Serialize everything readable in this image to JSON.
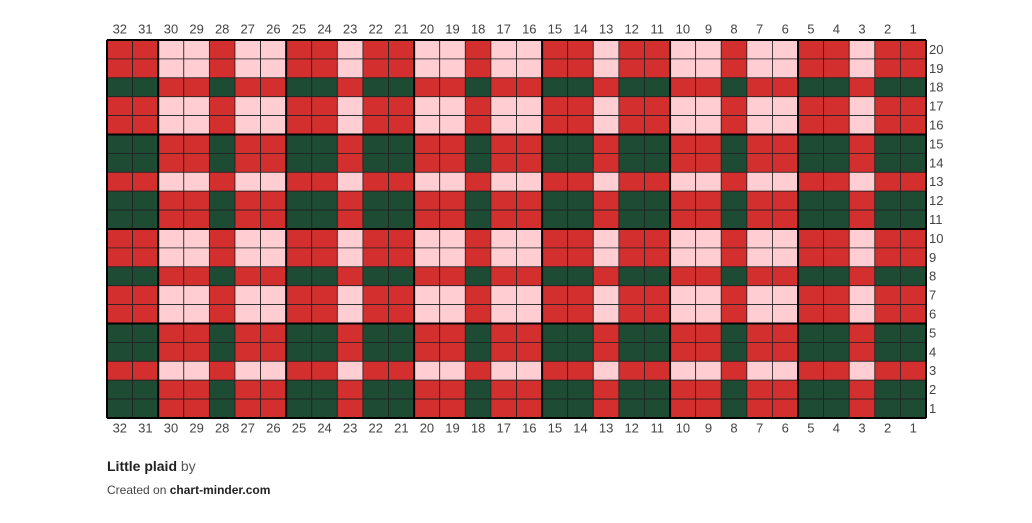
{
  "grid": {
    "column_labels": [
      32,
      31,
      30,
      29,
      28,
      27,
      26,
      25,
      24,
      23,
      22,
      21,
      20,
      19,
      18,
      17,
      16,
      15,
      14,
      13,
      12,
      11,
      10,
      9,
      8,
      7,
      6,
      5,
      4,
      3,
      2,
      1
    ],
    "row_labels": [
      20,
      19,
      18,
      17,
      16,
      15,
      14,
      13,
      12,
      11,
      10,
      9,
      8,
      7,
      6,
      5,
      4,
      3,
      2,
      1
    ],
    "major_every": 5,
    "rows": [
      [
        "#d32f2f",
        "#d32f2f",
        "#ffcdd2",
        "#ffcdd2",
        "#d32f2f",
        "#ffcdd2",
        "#ffcdd2",
        "#d32f2f",
        "#d32f2f",
        "#ffcdd2",
        "#d32f2f",
        "#d32f2f",
        "#ffcdd2",
        "#ffcdd2",
        "#d32f2f",
        "#ffcdd2",
        "#ffcdd2",
        "#d32f2f",
        "#d32f2f",
        "#ffcdd2",
        "#d32f2f",
        "#d32f2f",
        "#ffcdd2",
        "#ffcdd2",
        "#d32f2f",
        "#ffcdd2",
        "#ffcdd2",
        "#d32f2f",
        "#d32f2f",
        "#ffcdd2",
        "#d32f2f",
        "#d32f2f"
      ],
      [
        "#d32f2f",
        "#d32f2f",
        "#ffcdd2",
        "#ffcdd2",
        "#d32f2f",
        "#ffcdd2",
        "#ffcdd2",
        "#d32f2f",
        "#d32f2f",
        "#ffcdd2",
        "#d32f2f",
        "#d32f2f",
        "#ffcdd2",
        "#ffcdd2",
        "#d32f2f",
        "#ffcdd2",
        "#ffcdd2",
        "#d32f2f",
        "#d32f2f",
        "#ffcdd2",
        "#d32f2f",
        "#d32f2f",
        "#ffcdd2",
        "#ffcdd2",
        "#d32f2f",
        "#ffcdd2",
        "#ffcdd2",
        "#d32f2f",
        "#d32f2f",
        "#ffcdd2",
        "#d32f2f",
        "#d32f2f"
      ],
      [
        "#1d4b34",
        "#1d4b34",
        "#d32f2f",
        "#d32f2f",
        "#1d4b34",
        "#d32f2f",
        "#d32f2f",
        "#1d4b34",
        "#1d4b34",
        "#d32f2f",
        "#1d4b34",
        "#1d4b34",
        "#d32f2f",
        "#d32f2f",
        "#1d4b34",
        "#d32f2f",
        "#d32f2f",
        "#1d4b34",
        "#1d4b34",
        "#d32f2f",
        "#1d4b34",
        "#1d4b34",
        "#d32f2f",
        "#d32f2f",
        "#1d4b34",
        "#d32f2f",
        "#d32f2f",
        "#1d4b34",
        "#1d4b34",
        "#d32f2f",
        "#1d4b34",
        "#1d4b34"
      ],
      [
        "#d32f2f",
        "#d32f2f",
        "#ffcdd2",
        "#ffcdd2",
        "#d32f2f",
        "#ffcdd2",
        "#ffcdd2",
        "#d32f2f",
        "#d32f2f",
        "#ffcdd2",
        "#d32f2f",
        "#d32f2f",
        "#ffcdd2",
        "#ffcdd2",
        "#d32f2f",
        "#ffcdd2",
        "#ffcdd2",
        "#d32f2f",
        "#d32f2f",
        "#ffcdd2",
        "#d32f2f",
        "#d32f2f",
        "#ffcdd2",
        "#ffcdd2",
        "#d32f2f",
        "#ffcdd2",
        "#ffcdd2",
        "#d32f2f",
        "#d32f2f",
        "#ffcdd2",
        "#d32f2f",
        "#d32f2f"
      ],
      [
        "#d32f2f",
        "#d32f2f",
        "#ffcdd2",
        "#ffcdd2",
        "#d32f2f",
        "#ffcdd2",
        "#ffcdd2",
        "#d32f2f",
        "#d32f2f",
        "#ffcdd2",
        "#d32f2f",
        "#d32f2f",
        "#ffcdd2",
        "#ffcdd2",
        "#d32f2f",
        "#ffcdd2",
        "#ffcdd2",
        "#d32f2f",
        "#d32f2f",
        "#ffcdd2",
        "#d32f2f",
        "#d32f2f",
        "#ffcdd2",
        "#ffcdd2",
        "#d32f2f",
        "#ffcdd2",
        "#ffcdd2",
        "#d32f2f",
        "#d32f2f",
        "#ffcdd2",
        "#d32f2f",
        "#d32f2f"
      ],
      [
        "#1d4b34",
        "#1d4b34",
        "#d32f2f",
        "#d32f2f",
        "#1d4b34",
        "#d32f2f",
        "#d32f2f",
        "#1d4b34",
        "#1d4b34",
        "#d32f2f",
        "#1d4b34",
        "#1d4b34",
        "#d32f2f",
        "#d32f2f",
        "#1d4b34",
        "#d32f2f",
        "#d32f2f",
        "#1d4b34",
        "#1d4b34",
        "#d32f2f",
        "#1d4b34",
        "#1d4b34",
        "#d32f2f",
        "#d32f2f",
        "#1d4b34",
        "#d32f2f",
        "#d32f2f",
        "#1d4b34",
        "#1d4b34",
        "#d32f2f",
        "#1d4b34",
        "#1d4b34"
      ],
      [
        "#1d4b34",
        "#1d4b34",
        "#d32f2f",
        "#d32f2f",
        "#1d4b34",
        "#d32f2f",
        "#d32f2f",
        "#1d4b34",
        "#1d4b34",
        "#d32f2f",
        "#1d4b34",
        "#1d4b34",
        "#d32f2f",
        "#d32f2f",
        "#1d4b34",
        "#d32f2f",
        "#d32f2f",
        "#1d4b34",
        "#1d4b34",
        "#d32f2f",
        "#1d4b34",
        "#1d4b34",
        "#d32f2f",
        "#d32f2f",
        "#1d4b34",
        "#d32f2f",
        "#d32f2f",
        "#1d4b34",
        "#1d4b34",
        "#d32f2f",
        "#1d4b34",
        "#1d4b34"
      ],
      [
        "#d32f2f",
        "#d32f2f",
        "#ffcdd2",
        "#ffcdd2",
        "#d32f2f",
        "#ffcdd2",
        "#ffcdd2",
        "#d32f2f",
        "#d32f2f",
        "#ffcdd2",
        "#d32f2f",
        "#d32f2f",
        "#ffcdd2",
        "#ffcdd2",
        "#d32f2f",
        "#ffcdd2",
        "#ffcdd2",
        "#d32f2f",
        "#d32f2f",
        "#ffcdd2",
        "#d32f2f",
        "#d32f2f",
        "#ffcdd2",
        "#ffcdd2",
        "#d32f2f",
        "#ffcdd2",
        "#ffcdd2",
        "#d32f2f",
        "#d32f2f",
        "#ffcdd2",
        "#d32f2f",
        "#d32f2f"
      ],
      [
        "#1d4b34",
        "#1d4b34",
        "#d32f2f",
        "#d32f2f",
        "#1d4b34",
        "#d32f2f",
        "#d32f2f",
        "#1d4b34",
        "#1d4b34",
        "#d32f2f",
        "#1d4b34",
        "#1d4b34",
        "#d32f2f",
        "#d32f2f",
        "#1d4b34",
        "#d32f2f",
        "#d32f2f",
        "#1d4b34",
        "#1d4b34",
        "#d32f2f",
        "#1d4b34",
        "#1d4b34",
        "#d32f2f",
        "#d32f2f",
        "#1d4b34",
        "#d32f2f",
        "#d32f2f",
        "#1d4b34",
        "#1d4b34",
        "#d32f2f",
        "#1d4b34",
        "#1d4b34"
      ],
      [
        "#1d4b34",
        "#1d4b34",
        "#d32f2f",
        "#d32f2f",
        "#1d4b34",
        "#d32f2f",
        "#d32f2f",
        "#1d4b34",
        "#1d4b34",
        "#d32f2f",
        "#1d4b34",
        "#1d4b34",
        "#d32f2f",
        "#d32f2f",
        "#1d4b34",
        "#d32f2f",
        "#d32f2f",
        "#1d4b34",
        "#1d4b34",
        "#d32f2f",
        "#1d4b34",
        "#1d4b34",
        "#d32f2f",
        "#d32f2f",
        "#1d4b34",
        "#d32f2f",
        "#d32f2f",
        "#1d4b34",
        "#1d4b34",
        "#d32f2f",
        "#1d4b34",
        "#1d4b34"
      ],
      [
        "#d32f2f",
        "#d32f2f",
        "#ffcdd2",
        "#ffcdd2",
        "#d32f2f",
        "#ffcdd2",
        "#ffcdd2",
        "#d32f2f",
        "#d32f2f",
        "#ffcdd2",
        "#d32f2f",
        "#d32f2f",
        "#ffcdd2",
        "#ffcdd2",
        "#d32f2f",
        "#ffcdd2",
        "#ffcdd2",
        "#d32f2f",
        "#d32f2f",
        "#ffcdd2",
        "#d32f2f",
        "#d32f2f",
        "#ffcdd2",
        "#ffcdd2",
        "#d32f2f",
        "#ffcdd2",
        "#ffcdd2",
        "#d32f2f",
        "#d32f2f",
        "#ffcdd2",
        "#d32f2f",
        "#d32f2f"
      ],
      [
        "#d32f2f",
        "#d32f2f",
        "#ffcdd2",
        "#ffcdd2",
        "#d32f2f",
        "#ffcdd2",
        "#ffcdd2",
        "#d32f2f",
        "#d32f2f",
        "#ffcdd2",
        "#d32f2f",
        "#d32f2f",
        "#ffcdd2",
        "#ffcdd2",
        "#d32f2f",
        "#ffcdd2",
        "#ffcdd2",
        "#d32f2f",
        "#d32f2f",
        "#ffcdd2",
        "#d32f2f",
        "#d32f2f",
        "#ffcdd2",
        "#ffcdd2",
        "#d32f2f",
        "#ffcdd2",
        "#ffcdd2",
        "#d32f2f",
        "#d32f2f",
        "#ffcdd2",
        "#d32f2f",
        "#d32f2f"
      ],
      [
        "#1d4b34",
        "#1d4b34",
        "#d32f2f",
        "#d32f2f",
        "#1d4b34",
        "#d32f2f",
        "#d32f2f",
        "#1d4b34",
        "#1d4b34",
        "#d32f2f",
        "#1d4b34",
        "#1d4b34",
        "#d32f2f",
        "#d32f2f",
        "#1d4b34",
        "#d32f2f",
        "#d32f2f",
        "#1d4b34",
        "#1d4b34",
        "#d32f2f",
        "#1d4b34",
        "#1d4b34",
        "#d32f2f",
        "#d32f2f",
        "#1d4b34",
        "#d32f2f",
        "#d32f2f",
        "#1d4b34",
        "#1d4b34",
        "#d32f2f",
        "#1d4b34",
        "#1d4b34"
      ],
      [
        "#d32f2f",
        "#d32f2f",
        "#ffcdd2",
        "#ffcdd2",
        "#d32f2f",
        "#ffcdd2",
        "#ffcdd2",
        "#d32f2f",
        "#d32f2f",
        "#ffcdd2",
        "#d32f2f",
        "#d32f2f",
        "#ffcdd2",
        "#ffcdd2",
        "#d32f2f",
        "#ffcdd2",
        "#ffcdd2",
        "#d32f2f",
        "#d32f2f",
        "#ffcdd2",
        "#d32f2f",
        "#d32f2f",
        "#ffcdd2",
        "#ffcdd2",
        "#d32f2f",
        "#ffcdd2",
        "#ffcdd2",
        "#d32f2f",
        "#d32f2f",
        "#ffcdd2",
        "#d32f2f",
        "#d32f2f"
      ],
      [
        "#d32f2f",
        "#d32f2f",
        "#ffcdd2",
        "#ffcdd2",
        "#d32f2f",
        "#ffcdd2",
        "#ffcdd2",
        "#d32f2f",
        "#d32f2f",
        "#ffcdd2",
        "#d32f2f",
        "#d32f2f",
        "#ffcdd2",
        "#ffcdd2",
        "#d32f2f",
        "#ffcdd2",
        "#ffcdd2",
        "#d32f2f",
        "#d32f2f",
        "#ffcdd2",
        "#d32f2f",
        "#d32f2f",
        "#ffcdd2",
        "#ffcdd2",
        "#d32f2f",
        "#ffcdd2",
        "#ffcdd2",
        "#d32f2f",
        "#d32f2f",
        "#ffcdd2",
        "#d32f2f",
        "#d32f2f"
      ],
      [
        "#1d4b34",
        "#1d4b34",
        "#d32f2f",
        "#d32f2f",
        "#1d4b34",
        "#d32f2f",
        "#d32f2f",
        "#1d4b34",
        "#1d4b34",
        "#d32f2f",
        "#1d4b34",
        "#1d4b34",
        "#d32f2f",
        "#d32f2f",
        "#1d4b34",
        "#d32f2f",
        "#d32f2f",
        "#1d4b34",
        "#1d4b34",
        "#d32f2f",
        "#1d4b34",
        "#1d4b34",
        "#d32f2f",
        "#d32f2f",
        "#1d4b34",
        "#d32f2f",
        "#d32f2f",
        "#1d4b34",
        "#1d4b34",
        "#d32f2f",
        "#1d4b34",
        "#1d4b34"
      ],
      [
        "#1d4b34",
        "#1d4b34",
        "#d32f2f",
        "#d32f2f",
        "#1d4b34",
        "#d32f2f",
        "#d32f2f",
        "#1d4b34",
        "#1d4b34",
        "#d32f2f",
        "#1d4b34",
        "#1d4b34",
        "#d32f2f",
        "#d32f2f",
        "#1d4b34",
        "#d32f2f",
        "#d32f2f",
        "#1d4b34",
        "#1d4b34",
        "#d32f2f",
        "#1d4b34",
        "#1d4b34",
        "#d32f2f",
        "#d32f2f",
        "#1d4b34",
        "#d32f2f",
        "#d32f2f",
        "#1d4b34",
        "#1d4b34",
        "#d32f2f",
        "#1d4b34",
        "#1d4b34"
      ],
      [
        "#d32f2f",
        "#d32f2f",
        "#ffcdd2",
        "#ffcdd2",
        "#d32f2f",
        "#ffcdd2",
        "#ffcdd2",
        "#d32f2f",
        "#d32f2f",
        "#ffcdd2",
        "#d32f2f",
        "#d32f2f",
        "#ffcdd2",
        "#ffcdd2",
        "#d32f2f",
        "#ffcdd2",
        "#ffcdd2",
        "#d32f2f",
        "#d32f2f",
        "#ffcdd2",
        "#d32f2f",
        "#d32f2f",
        "#ffcdd2",
        "#ffcdd2",
        "#d32f2f",
        "#ffcdd2",
        "#ffcdd2",
        "#d32f2f",
        "#d32f2f",
        "#ffcdd2",
        "#d32f2f",
        "#d32f2f"
      ],
      [
        "#1d4b34",
        "#1d4b34",
        "#d32f2f",
        "#d32f2f",
        "#1d4b34",
        "#d32f2f",
        "#d32f2f",
        "#1d4b34",
        "#1d4b34",
        "#d32f2f",
        "#1d4b34",
        "#1d4b34",
        "#d32f2f",
        "#d32f2f",
        "#1d4b34",
        "#d32f2f",
        "#d32f2f",
        "#1d4b34",
        "#1d4b34",
        "#d32f2f",
        "#1d4b34",
        "#1d4b34",
        "#d32f2f",
        "#d32f2f",
        "#1d4b34",
        "#d32f2f",
        "#d32f2f",
        "#1d4b34",
        "#1d4b34",
        "#d32f2f",
        "#1d4b34",
        "#1d4b34"
      ],
      [
        "#1d4b34",
        "#1d4b34",
        "#d32f2f",
        "#d32f2f",
        "#1d4b34",
        "#d32f2f",
        "#d32f2f",
        "#1d4b34",
        "#1d4b34",
        "#d32f2f",
        "#1d4b34",
        "#1d4b34",
        "#d32f2f",
        "#d32f2f",
        "#1d4b34",
        "#d32f2f",
        "#d32f2f",
        "#1d4b34",
        "#1d4b34",
        "#d32f2f",
        "#1d4b34",
        "#1d4b34",
        "#d32f2f",
        "#d32f2f",
        "#1d4b34",
        "#d32f2f",
        "#d32f2f",
        "#1d4b34",
        "#1d4b34",
        "#d32f2f",
        "#1d4b34",
        "#1d4b34"
      ]
    ]
  },
  "footer": {
    "title": "Little plaid",
    "by": "by",
    "created": "Created on",
    "site": "chart-minder.com"
  }
}
